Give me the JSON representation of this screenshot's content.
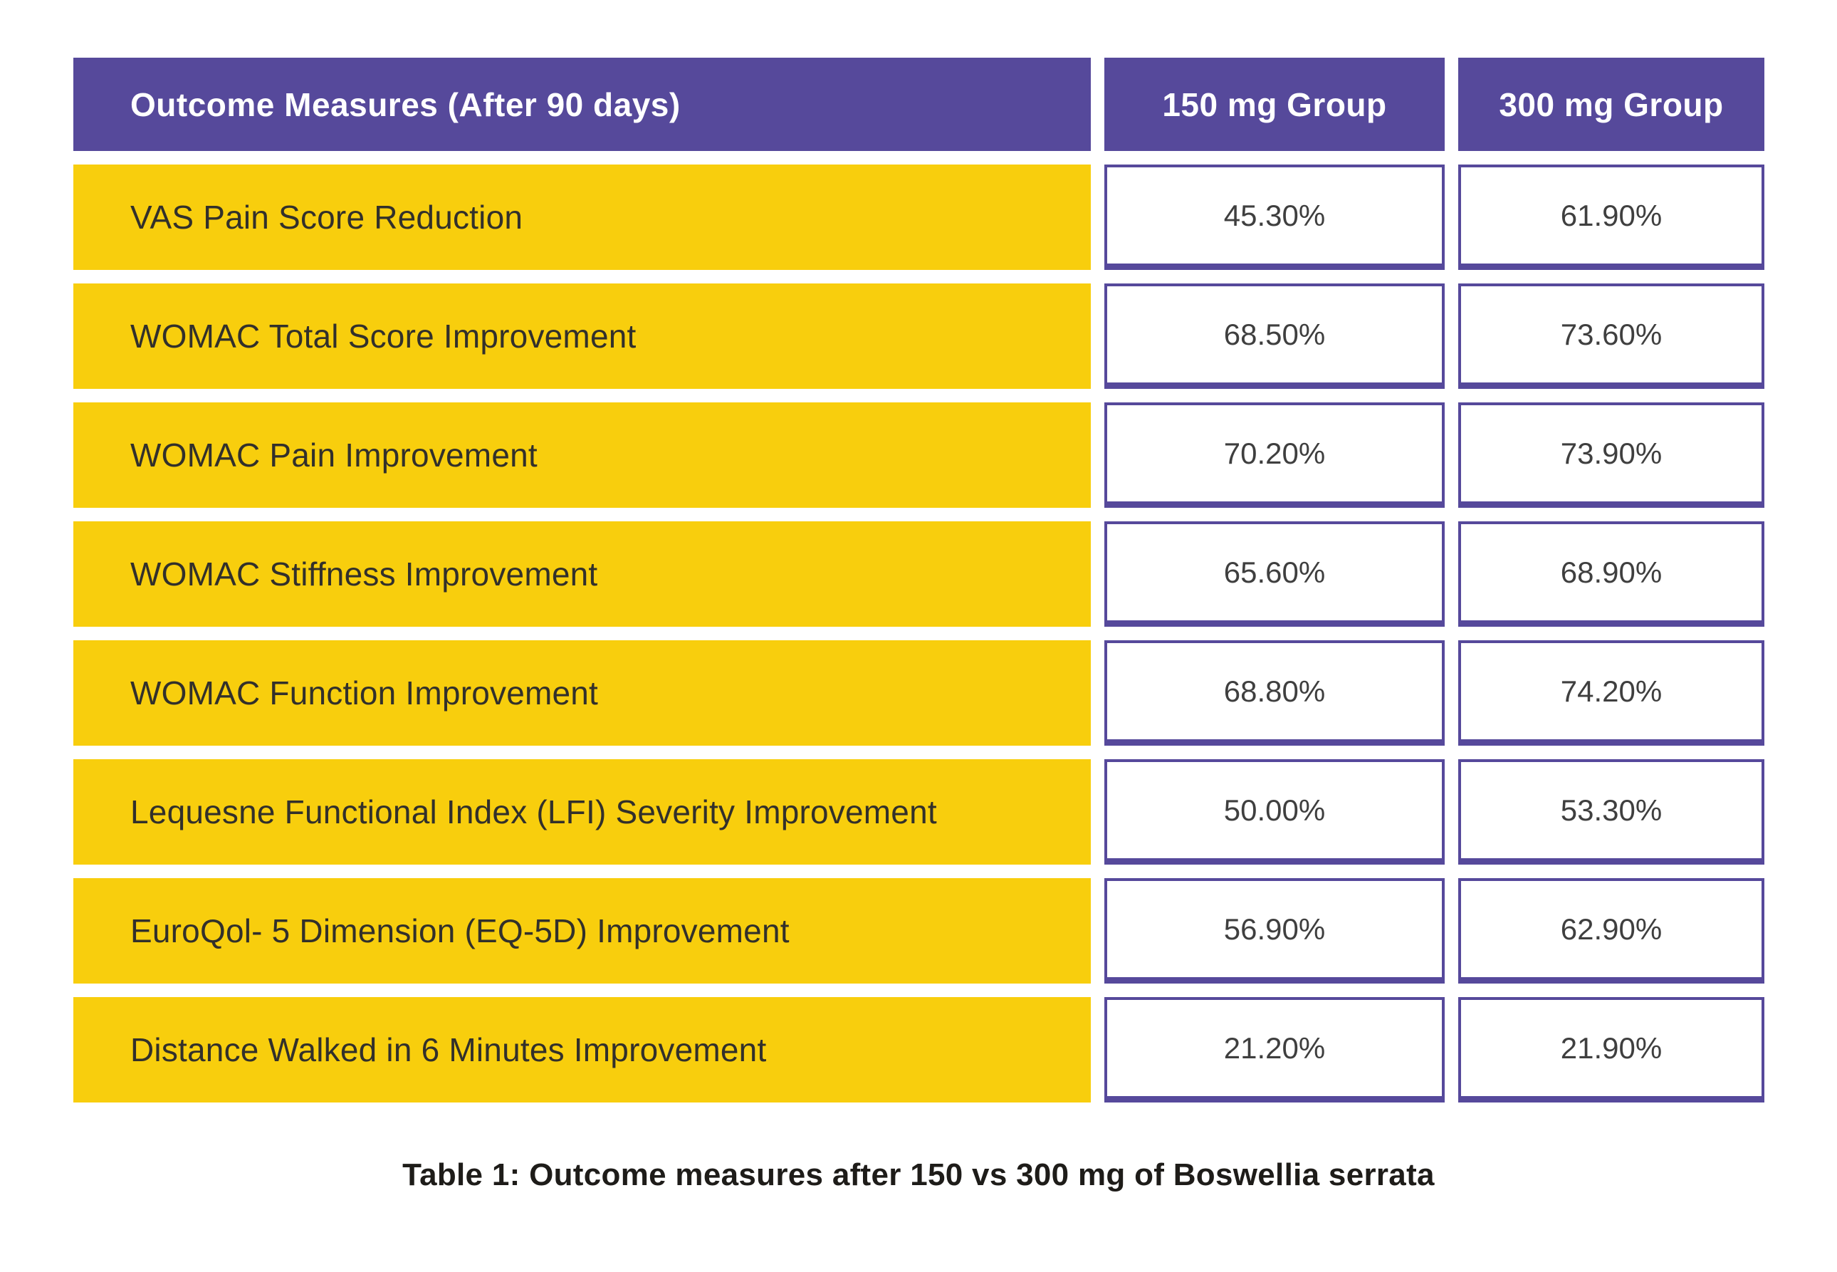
{
  "colors": {
    "page_bg": "#ffffff",
    "header_bg": "#56499B",
    "header_text": "#ffffff",
    "row_bg": "#F8CE0D",
    "value_border": "#56499B",
    "label_text": "#32302B",
    "value_text": "#3F3F3F",
    "caption_text": "#1E1C19"
  },
  "table": {
    "header": {
      "col1": "Outcome Measures (After 90 days)",
      "col2": "150 mg Group",
      "col3": "300 mg Group"
    },
    "rows": [
      {
        "label": "VAS Pain Score Reduction",
        "group150": "45.30%",
        "group300": "61.90%"
      },
      {
        "label": "WOMAC Total Score Improvement",
        "group150": "68.50%",
        "group300": "73.60%"
      },
      {
        "label": "WOMAC Pain Improvement",
        "group150": "70.20%",
        "group300": "73.90%"
      },
      {
        "label": "WOMAC Stiffness Improvement",
        "group150": "65.60%",
        "group300": "68.90%"
      },
      {
        "label": "WOMAC Function Improvement",
        "group150": "68.80%",
        "group300": "74.20%"
      },
      {
        "label": "Lequesne Functional Index (LFI) Severity Improvement",
        "group150": "50.00%",
        "group300": "53.30%"
      },
      {
        "label": "EuroQol- 5 Dimension (EQ-5D) Improvement",
        "group150": "56.90%",
        "group300": "62.90%"
      },
      {
        "label": "Distance Walked in 6 Minutes Improvement",
        "group150": "21.20%",
        "group300": "21.90%"
      }
    ]
  },
  "caption": "Table 1: Outcome measures after 150 vs 300 mg of Boswellia serrata",
  "chart_data": {
    "type": "table",
    "title": "Table 1: Outcome measures after 150 vs 300 mg of Boswellia serrata",
    "columns": [
      "Outcome Measures (After 90 days)",
      "150 mg Group",
      "300 mg Group"
    ],
    "rows": [
      [
        "VAS Pain Score Reduction",
        45.3,
        61.9
      ],
      [
        "WOMAC Total Score Improvement",
        68.5,
        73.6
      ],
      [
        "WOMAC Pain Improvement",
        70.2,
        73.9
      ],
      [
        "WOMAC Stiffness Improvement",
        65.6,
        68.9
      ],
      [
        "WOMAC Function Improvement",
        68.8,
        74.2
      ],
      [
        "Lequesne Functional Index (LFI) Severity Improvement",
        50.0,
        53.3
      ],
      [
        "EuroQol- 5 Dimension (EQ-5D) Improvement",
        56.9,
        62.9
      ],
      [
        "Distance Walked in 6 Minutes Improvement",
        21.2,
        21.9
      ]
    ],
    "value_format": "percent"
  }
}
